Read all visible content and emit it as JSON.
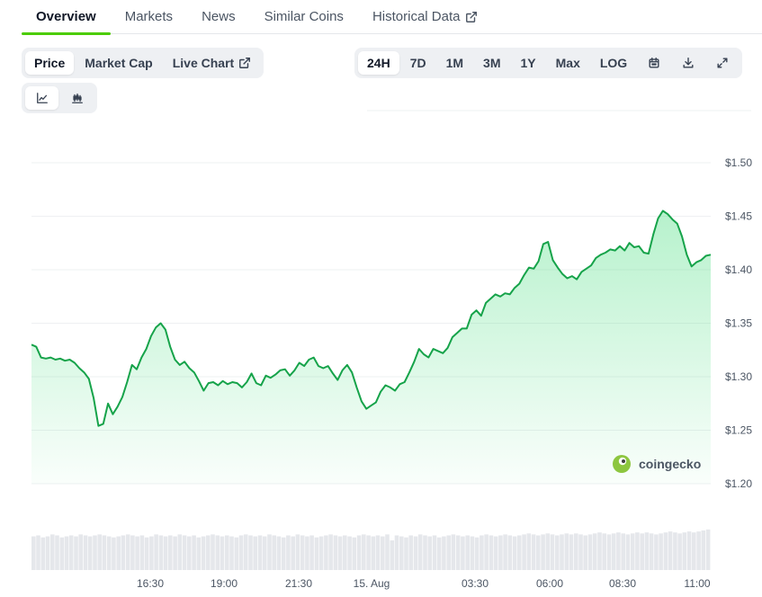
{
  "tabs": [
    {
      "label": "Overview",
      "active": true
    },
    {
      "label": "Markets",
      "active": false
    },
    {
      "label": "News",
      "active": false
    },
    {
      "label": "Similar Coins",
      "active": false
    },
    {
      "label": "Historical Data",
      "active": false,
      "icon": "external-link-icon"
    }
  ],
  "metric_buttons": [
    {
      "label": "Price",
      "selected": true
    },
    {
      "label": "Market Cap",
      "selected": false
    },
    {
      "label": "Live Chart",
      "selected": false,
      "icon": "external-link-icon"
    }
  ],
  "range_buttons": [
    {
      "label": "24H",
      "selected": true
    },
    {
      "label": "7D",
      "selected": false
    },
    {
      "label": "1M",
      "selected": false
    },
    {
      "label": "3M",
      "selected": false
    },
    {
      "label": "1Y",
      "selected": false
    },
    {
      "label": "Max",
      "selected": false
    },
    {
      "label": "LOG",
      "selected": false
    }
  ],
  "tool_icons": [
    "calendar-icon",
    "download-icon",
    "expand-icon"
  ],
  "chart_type_icons": [
    {
      "icon": "line-chart-icon",
      "selected": true
    },
    {
      "icon": "candlestick-chart-icon",
      "selected": false
    }
  ],
  "watermark": "coingecko",
  "colors": {
    "line": "#16a34a",
    "fill": "#4ade80",
    "accent": "#4bcc00",
    "volume": "#e5e7eb"
  },
  "chart_data": {
    "type": "area",
    "title": "",
    "xlabel": "",
    "ylabel": "",
    "x_ticks": [
      "16:30",
      "19:00",
      "21:30",
      "15. Aug",
      "03:30",
      "06:00",
      "08:30",
      "11:00"
    ],
    "y_ticks": [
      "$1.50",
      "$1.45",
      "$1.40",
      "$1.35",
      "$1.30",
      "$1.25",
      "$1.20"
    ],
    "ylim": [
      1.2,
      1.5
    ],
    "grid": true,
    "y_axis_position": "right",
    "series": [
      {
        "values": [
          1.33,
          1.328,
          1.318,
          1.317,
          1.318,
          1.316,
          1.317,
          1.315,
          1.316,
          1.313,
          1.308,
          1.304,
          1.298,
          1.28,
          1.254,
          1.256,
          1.275,
          1.265,
          1.272,
          1.281,
          1.295,
          1.311,
          1.307,
          1.318,
          1.326,
          1.338,
          1.346,
          1.35,
          1.344,
          1.328,
          1.316,
          1.311,
          1.314,
          1.308,
          1.304,
          1.296,
          1.287,
          1.294,
          1.295,
          1.292,
          1.296,
          1.293,
          1.295,
          1.294,
          1.29,
          1.295,
          1.303,
          1.294,
          1.292,
          1.301,
          1.299,
          1.302,
          1.306,
          1.307,
          1.301,
          1.306,
          1.313,
          1.31,
          1.316,
          1.318,
          1.31,
          1.308,
          1.31,
          1.303,
          1.297,
          1.306,
          1.311,
          1.304,
          1.29,
          1.277,
          1.27,
          1.273,
          1.276,
          1.286,
          1.292,
          1.29,
          1.287,
          1.293,
          1.295,
          1.304,
          1.314,
          1.326,
          1.321,
          1.318,
          1.326,
          1.324,
          1.322,
          1.327,
          1.337,
          1.341,
          1.345,
          1.345,
          1.358,
          1.362,
          1.357,
          1.369,
          1.373,
          1.377,
          1.375,
          1.378,
          1.377,
          1.383,
          1.387,
          1.395,
          1.402,
          1.401,
          1.408,
          1.424,
          1.426,
          1.409,
          1.402,
          1.396,
          1.392,
          1.394,
          1.391,
          1.398,
          1.401,
          1.404,
          1.411,
          1.414,
          1.416,
          1.419,
          1.418,
          1.422,
          1.418,
          1.425,
          1.421,
          1.422,
          1.416,
          1.415,
          1.433,
          1.448,
          1.455,
          1.452,
          1.447,
          1.443,
          1.431,
          1.414,
          1.403,
          1.407,
          1.409,
          1.413,
          1.414
        ]
      }
    ],
    "volume": [
      34,
      35,
      33,
      34,
      36,
      35,
      33,
      34,
      35,
      34,
      36,
      35,
      34,
      35,
      36,
      35,
      34,
      33,
      34,
      35,
      36,
      35,
      34,
      35,
      33,
      34,
      36,
      35,
      34,
      35,
      34,
      36,
      35,
      34,
      35,
      33,
      34,
      35,
      36,
      35,
      34,
      35,
      34,
      33,
      35,
      36,
      35,
      34,
      35,
      34,
      36,
      35,
      34,
      33,
      35,
      34,
      36,
      35,
      34,
      35,
      33,
      34,
      35,
      36,
      35,
      34,
      35,
      34,
      33,
      35,
      36,
      35,
      34,
      35,
      34,
      36,
      30,
      35,
      34,
      33,
      35,
      34,
      36,
      35,
      34,
      35,
      33,
      34,
      35,
      36,
      35,
      34,
      35,
      34,
      33,
      35,
      36,
      35,
      34,
      35,
      36,
      35,
      34,
      35,
      36,
      37,
      36,
      35,
      36,
      37,
      36,
      35,
      36,
      37,
      36,
      37,
      36,
      35,
      36,
      37,
      38,
      37,
      36,
      37,
      38,
      37,
      36,
      37,
      38,
      37,
      38,
      37,
      36,
      37,
      38,
      39,
      38,
      37,
      38,
      39,
      38,
      39,
      40,
      41
    ]
  }
}
